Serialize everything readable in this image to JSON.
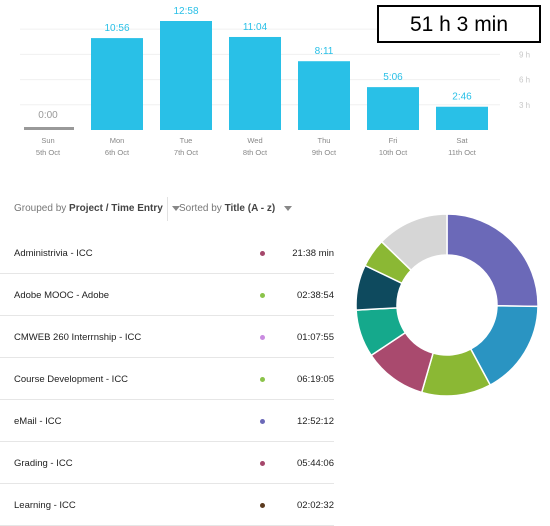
{
  "summary": {
    "total": "51 h 3 min"
  },
  "chart_data": {
    "type": "bar",
    "days": [
      "Sun",
      "Mon",
      "Tue",
      "Wed",
      "Thu",
      "Fri",
      "Sat"
    ],
    "dates": [
      "5th Oct",
      "6th Oct",
      "7th Oct",
      "8th Oct",
      "9th Oct",
      "10th Oct",
      "11th Oct"
    ],
    "values": [
      0,
      10.933,
      12.967,
      11.067,
      8.183,
      5.1,
      2.767
    ],
    "value_labels": [
      "0:00",
      "10:56",
      "12:58",
      "11:04",
      "8:11",
      "5:06",
      "2:46"
    ],
    "y_ticks": [
      "3 h",
      "6 h",
      "9 h",
      "12 h"
    ],
    "y_tick_values": [
      3,
      6,
      9,
      12
    ],
    "ylim": [
      0,
      13.8
    ],
    "bar_color": "#29c0e7",
    "zero_bar_color": "#999999"
  },
  "controls": {
    "group_prefix": "Grouped by",
    "group_value": "Project / Time Entry",
    "sort_prefix": "Sorted by",
    "sort_value": "Title (A - z)"
  },
  "entries": [
    {
      "name": "Administrivia - ICC",
      "time": "21:38 min",
      "color": "#a5476b"
    },
    {
      "name": "Adobe MOOC - Adobe",
      "time": "02:38:54",
      "color": "#8bc34a"
    },
    {
      "name": "CMWEB 260 Interrnship - ICC",
      "time": "01:07:55",
      "color": "#c98be0"
    },
    {
      "name": "Course Development - ICC",
      "time": "06:19:05",
      "color": "#8bc34a"
    },
    {
      "name": "eMail - ICC",
      "time": "12:52:12",
      "color": "#6b69b8"
    },
    {
      "name": "Grading - ICC",
      "time": "05:44:06",
      "color": "#a5476b"
    },
    {
      "name": "Learning - ICC",
      "time": "02:02:32",
      "color": "#5b3a1e"
    }
  ],
  "donut": {
    "segments": [
      {
        "value": 12.87,
        "color": "#6b69b8"
      },
      {
        "value": 8.6,
        "color": "#2a94c2"
      },
      {
        "value": 6.3,
        "color": "#8bb834"
      },
      {
        "value": 5.7,
        "color": "#a94a6e"
      },
      {
        "value": 4.3,
        "color": "#15a98c"
      },
      {
        "value": 4.1,
        "color": "#0e4a5e"
      },
      {
        "value": 2.6,
        "color": "#8bb834"
      },
      {
        "value": 6.5,
        "color": "#d6d6d6"
      }
    ]
  }
}
